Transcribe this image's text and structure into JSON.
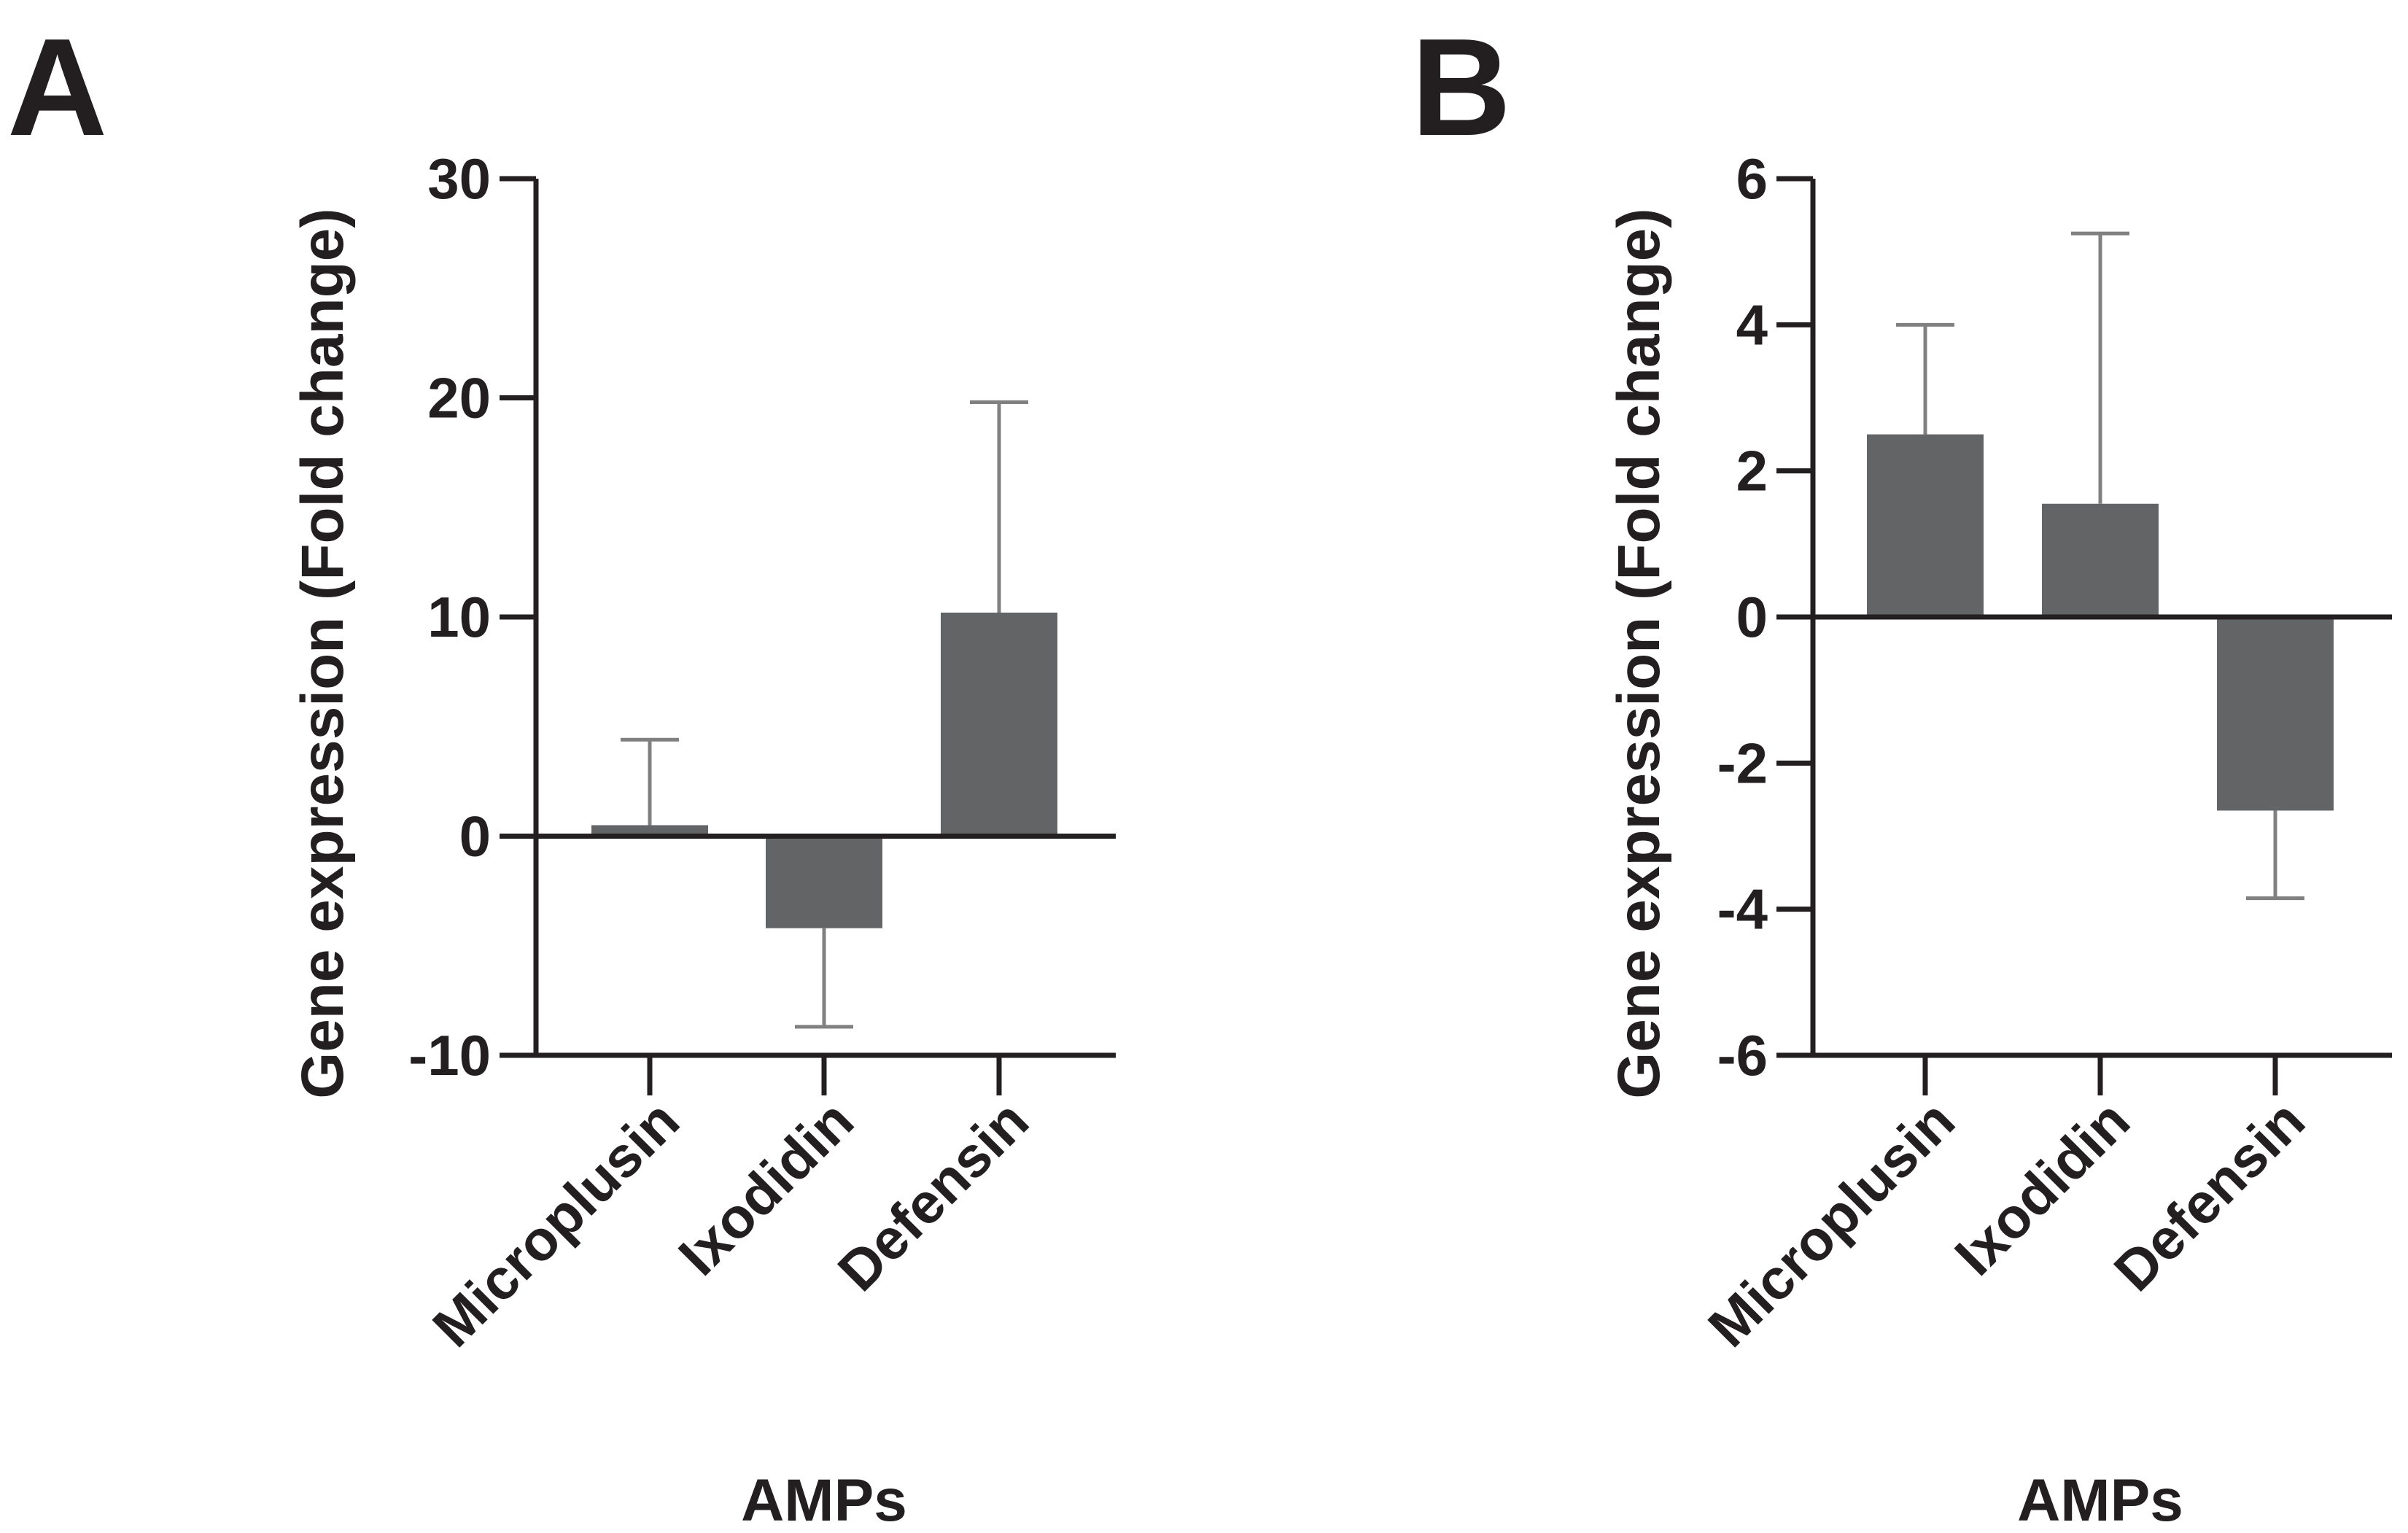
{
  "colors": {
    "bar_fill": "#636466",
    "axis": "#231f20",
    "error_bar": "#808080",
    "text": "#231f20"
  },
  "chart_data": [
    {
      "panel": "A",
      "type": "bar",
      "title": "",
      "xlabel": "AMPs",
      "ylabel": "Gene expression (Fold change)",
      "categories": [
        "Microplusin",
        "Ixodidin",
        "Defensin"
      ],
      "values": [
        0.5,
        -4.2,
        10.2
      ],
      "error_upper": [
        4.4,
        null,
        19.8
      ],
      "error_lower": [
        null,
        -8.7,
        null
      ],
      "ylim": [
        -10,
        30
      ],
      "yticks": [
        -10,
        0,
        10,
        20,
        30
      ],
      "ytick_labels": [
        "-10",
        "0",
        "10",
        "20",
        "30"
      ],
      "grid": false,
      "legend": "none"
    },
    {
      "panel": "B",
      "type": "bar",
      "title": "",
      "xlabel": "AMPs",
      "ylabel": "Gene expression (Fold change)",
      "categories": [
        "Microplusin",
        "Ixodidin",
        "Defensin"
      ],
      "values": [
        2.5,
        1.55,
        -2.65
      ],
      "error_upper": [
        4.0,
        5.25,
        null
      ],
      "error_lower": [
        null,
        null,
        -3.85
      ],
      "ylim": [
        -6,
        6
      ],
      "yticks": [
        -6,
        -4,
        -2,
        0,
        2,
        4,
        6
      ],
      "ytick_labels": [
        "-6",
        "-4",
        "-2",
        "0",
        "2",
        "4",
        "6"
      ],
      "grid": false,
      "legend": "none"
    }
  ]
}
